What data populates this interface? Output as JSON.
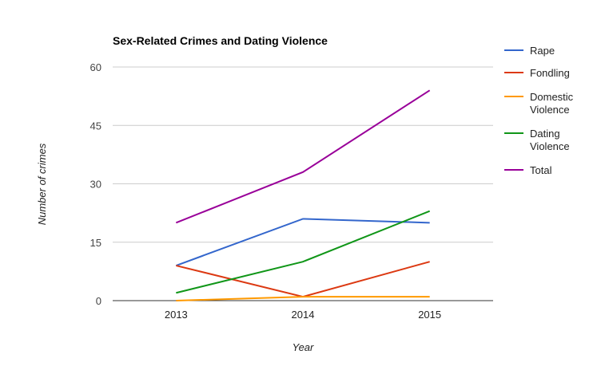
{
  "chart_data": {
    "type": "line",
    "title": "Sex-Related Crimes and Dating Violence",
    "xlabel": "Year",
    "ylabel": "Number of crimes",
    "categories": [
      "2013",
      "2014",
      "2015"
    ],
    "ylim": [
      0,
      60
    ],
    "yticks": [
      0,
      15,
      30,
      45,
      60
    ],
    "grid": true,
    "legend_position": "right",
    "series": [
      {
        "name": "Rape",
        "legend_lines": [
          "Rape"
        ],
        "color": "#3366cc",
        "values": [
          9,
          21,
          20
        ]
      },
      {
        "name": "Fondling",
        "legend_lines": [
          "Fondling"
        ],
        "color": "#dc3912",
        "values": [
          9,
          1,
          10
        ]
      },
      {
        "name": "Domestic Violence",
        "legend_lines": [
          "Domestic",
          "Violence"
        ],
        "color": "#ff9900",
        "values": [
          0,
          1,
          1
        ]
      },
      {
        "name": "Dating Violence",
        "legend_lines": [
          "Dating",
          "Violence"
        ],
        "color": "#109618",
        "values": [
          2,
          10,
          23
        ]
      },
      {
        "name": "Total",
        "legend_lines": [
          "Total"
        ],
        "color": "#990099",
        "values": [
          20,
          33,
          54
        ]
      }
    ]
  }
}
